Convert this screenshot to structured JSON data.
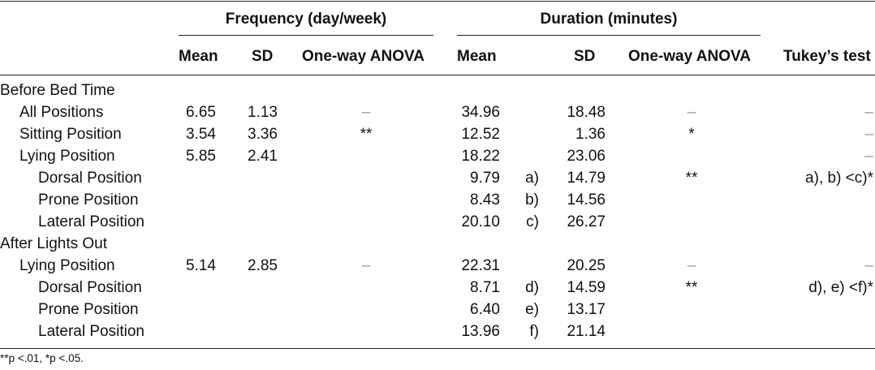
{
  "header": {
    "freq_group": "Frequency (day/week)",
    "dur_group": "Duration (minutes)",
    "freq_mean": "Mean",
    "freq_sd": "SD",
    "freq_anova": "One-way ANOVA",
    "dur_mean": "Mean",
    "dur_sd": "SD",
    "dur_anova": "One-way ANOVA",
    "tukey": "Tukey’s test"
  },
  "rows": [
    {
      "label": "Before Bed Time",
      "indent": 0,
      "freq_mean": "",
      "freq_sd": "",
      "freq_anova": "",
      "dur_mean": "",
      "dur_tag": "",
      "dur_sd": "",
      "dur_anova": "",
      "tukey": ""
    },
    {
      "label": "All Positions",
      "indent": 1,
      "freq_mean": "6.65",
      "freq_sd": "1.13",
      "freq_anova": "–",
      "dur_mean": "34.96",
      "dur_tag": "",
      "dur_sd": "18.48",
      "dur_anova": "–",
      "tukey": "–"
    },
    {
      "label": "Sitting Position",
      "indent": 1,
      "freq_mean": "3.54",
      "freq_sd": "3.36",
      "freq_anova": "**",
      "dur_mean": "12.52",
      "dur_tag": "",
      "dur_sd": "1.36",
      "dur_anova": "*",
      "tukey": "–"
    },
    {
      "label": "Lying Position",
      "indent": 1,
      "freq_mean": "5.85",
      "freq_sd": "2.41",
      "freq_anova": "",
      "dur_mean": "18.22",
      "dur_tag": "",
      "dur_sd": "23.06",
      "dur_anova": "",
      "tukey": "–"
    },
    {
      "label": "Dorsal Position",
      "indent": 2,
      "freq_mean": "",
      "freq_sd": "",
      "freq_anova": "",
      "dur_mean": "9.79",
      "dur_tag": "a)",
      "dur_sd": "14.79",
      "dur_anova": "**",
      "tukey": "a), b) <c)*"
    },
    {
      "label": "Prone Position",
      "indent": 2,
      "freq_mean": "",
      "freq_sd": "",
      "freq_anova": "",
      "dur_mean": "8.43",
      "dur_tag": "b)",
      "dur_sd": "14.56",
      "dur_anova": "",
      "tukey": ""
    },
    {
      "label": "Lateral Position",
      "indent": 2,
      "freq_mean": "",
      "freq_sd": "",
      "freq_anova": "",
      "dur_mean": "20.10",
      "dur_tag": "c)",
      "dur_sd": "26.27",
      "dur_anova": "",
      "tukey": ""
    },
    {
      "label": "After Lights Out",
      "indent": 0,
      "freq_mean": "",
      "freq_sd": "",
      "freq_anova": "",
      "dur_mean": "",
      "dur_tag": "",
      "dur_sd": "",
      "dur_anova": "",
      "tukey": ""
    },
    {
      "label": "Lying Position",
      "indent": 1,
      "freq_mean": "5.14",
      "freq_sd": "2.85",
      "freq_anova": "–",
      "dur_mean": "22.31",
      "dur_tag": "",
      "dur_sd": "20.25",
      "dur_anova": "–",
      "tukey": "–"
    },
    {
      "label": "Dorsal Position",
      "indent": 2,
      "freq_mean": "",
      "freq_sd": "",
      "freq_anova": "",
      "dur_mean": "8.71",
      "dur_tag": "d)",
      "dur_sd": "14.59",
      "dur_anova": "**",
      "tukey": "d), e) <f)*"
    },
    {
      "label": "Prone Position",
      "indent": 2,
      "freq_mean": "",
      "freq_sd": "",
      "freq_anova": "",
      "dur_mean": "6.40",
      "dur_tag": "e)",
      "dur_sd": "13.17",
      "dur_anova": "",
      "tukey": ""
    },
    {
      "label": "Lateral Position",
      "indent": 2,
      "freq_mean": "",
      "freq_sd": "",
      "freq_anova": "",
      "dur_mean": "13.96",
      "dur_tag": "f)",
      "dur_sd": "21.14",
      "dur_anova": "",
      "tukey": ""
    }
  ],
  "footnote": "**p <.01, *p <.05."
}
